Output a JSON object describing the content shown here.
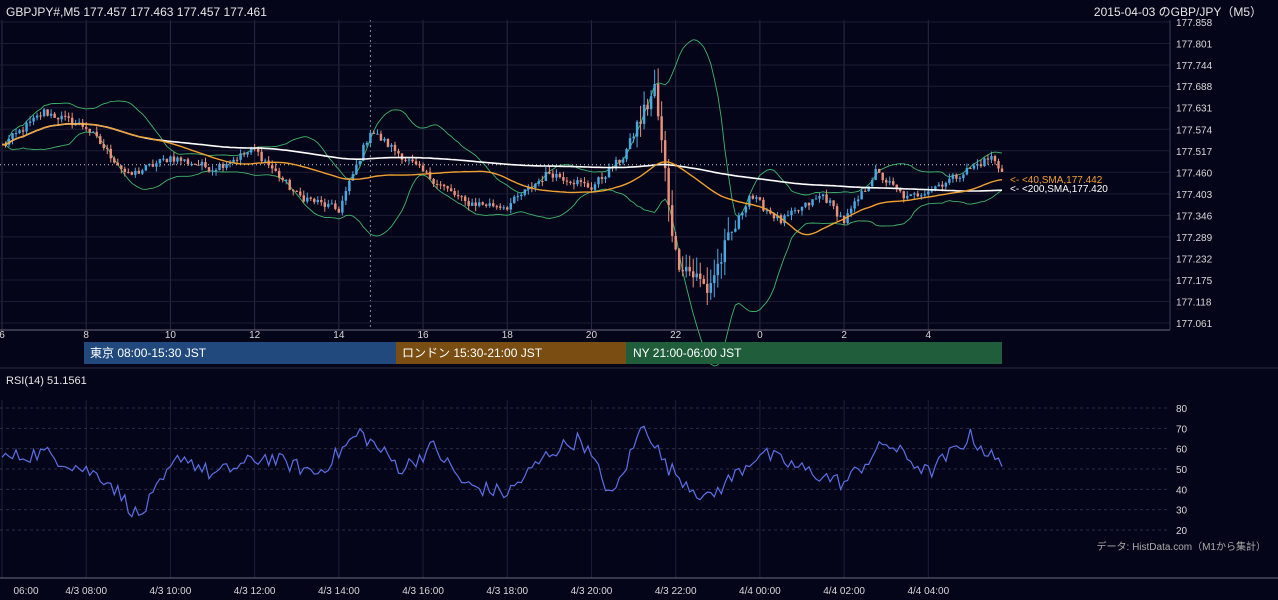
{
  "header": {
    "symbol_ohlc": "GBPJPY#,M5 177.457 177.463 177.457 177.461",
    "date_title": "2015-04-03 のGBP/JPY（M5）"
  },
  "price_axis": {
    "ticks": [
      "177.858",
      "177.801",
      "177.744",
      "177.688",
      "177.631",
      "177.574",
      "177.517",
      "177.460",
      "177.403",
      "177.346",
      "177.289",
      "177.232",
      "177.175",
      "177.118",
      "177.061"
    ]
  },
  "hour_axis": {
    "ticks": [
      "6",
      "8",
      "10",
      "12",
      "14",
      "16",
      "18",
      "20",
      "22",
      "0",
      "2",
      "4"
    ]
  },
  "sessions": [
    {
      "label": "東京 08:00-15:30 JST",
      "color": "#21497d"
    },
    {
      "label": "ロンドン 15:30-21:00 JST",
      "color": "#7a4e12"
    },
    {
      "label": "NY 21:00-06:00 JST",
      "color": "#1f5d3b"
    }
  ],
  "sma_labels": {
    "sma40": "<- <40,SMA,177.442",
    "sma200": "<- <200,SMA,177.420"
  },
  "rsi": {
    "title": "RSI(14) 51.1561",
    "ticks": [
      "80",
      "70",
      "60",
      "50",
      "40",
      "30",
      "20"
    ]
  },
  "time_axis": {
    "ticks": [
      "06:00",
      "4/3 08:00",
      "4/3 10:00",
      "4/3 12:00",
      "4/3 14:00",
      "4/3 16:00",
      "4/3 18:00",
      "4/3 20:00",
      "4/3 22:00",
      "4/4 00:00",
      "4/4 02:00",
      "4/4 04:00"
    ]
  },
  "source_note": "データ: HistData.com（M1から集計）",
  "colors": {
    "bull": "#4aa8e0",
    "bear": "#e8907a",
    "sma40": "#f0a030",
    "sma200": "#ffffff",
    "bollinger": "#3fb56a",
    "rsi_line": "#5b6fe6",
    "background": "#050519",
    "grid": "#2a2a44"
  },
  "chart_data": [
    {
      "type": "candlestick",
      "title": "GBPJPY#,M5",
      "timeframe": "M5",
      "x_range": [
        "2015-04-03 06:00",
        "2015-04-04 05:45"
      ],
      "ylim": [
        177.061,
        177.858
      ],
      "last_close": 177.461,
      "current_price_line": 177.48,
      "series": [
        {
          "name": "40,SMA",
          "last": 177.442
        },
        {
          "name": "200,SMA",
          "last": 177.42
        }
      ],
      "key_points": [
        {
          "time": "06:00",
          "price": 177.53
        },
        {
          "time": "07:00",
          "price": 177.62
        },
        {
          "time": "08:00",
          "price": 177.58
        },
        {
          "time": "09:00",
          "price": 177.45
        },
        {
          "time": "10:00",
          "price": 177.5
        },
        {
          "time": "11:00",
          "price": 177.47
        },
        {
          "time": "12:00",
          "price": 177.52
        },
        {
          "time": "13:00",
          "price": 177.4
        },
        {
          "time": "14:00",
          "price": 177.36
        },
        {
          "time": "14:45",
          "price": 177.57
        },
        {
          "time": "16:00",
          "price": 177.46
        },
        {
          "time": "17:00",
          "price": 177.38
        },
        {
          "time": "18:00",
          "price": 177.37
        },
        {
          "time": "19:00",
          "price": 177.46
        },
        {
          "time": "20:00",
          "price": 177.42
        },
        {
          "time": "20:45",
          "price": 177.5
        },
        {
          "time": "21:30",
          "price": 177.68
        },
        {
          "time": "22:00",
          "price": 177.24
        },
        {
          "time": "22:45",
          "price": 177.15
        },
        {
          "time": "23:45",
          "price": 177.4
        },
        {
          "time": "00:30",
          "price": 177.33
        },
        {
          "time": "01:30",
          "price": 177.4
        },
        {
          "time": "02:00",
          "price": 177.33
        },
        {
          "time": "02:45",
          "price": 177.46
        },
        {
          "time": "03:30",
          "price": 177.39
        },
        {
          "time": "04:30",
          "price": 177.44
        },
        {
          "time": "05:30",
          "price": 177.5
        },
        {
          "time": "05:45",
          "price": 177.461
        }
      ]
    },
    {
      "type": "line",
      "title": "RSI(14)",
      "last": 51.1561,
      "ylim": [
        20,
        80
      ],
      "key_points": [
        {
          "time": "06:00",
          "value": 55
        },
        {
          "time": "07:00",
          "value": 58
        },
        {
          "time": "08:30",
          "value": 45
        },
        {
          "time": "09:15",
          "value": 26
        },
        {
          "time": "10:15",
          "value": 57
        },
        {
          "time": "11:00",
          "value": 47
        },
        {
          "time": "12:15",
          "value": 56
        },
        {
          "time": "13:30",
          "value": 48
        },
        {
          "time": "14:30",
          "value": 68
        },
        {
          "time": "15:30",
          "value": 50
        },
        {
          "time": "16:15",
          "value": 61
        },
        {
          "time": "17:00",
          "value": 42
        },
        {
          "time": "18:00",
          "value": 38
        },
        {
          "time": "19:00",
          "value": 58
        },
        {
          "time": "19:45",
          "value": 65
        },
        {
          "time": "20:30",
          "value": 36
        },
        {
          "time": "21:15",
          "value": 73
        },
        {
          "time": "21:45",
          "value": 52
        },
        {
          "time": "22:45",
          "value": 35
        },
        {
          "time": "00:00",
          "value": 58
        },
        {
          "time": "01:00",
          "value": 50
        },
        {
          "time": "02:00",
          "value": 43
        },
        {
          "time": "03:00",
          "value": 63
        },
        {
          "time": "04:00",
          "value": 48
        },
        {
          "time": "05:00",
          "value": 66
        },
        {
          "time": "05:45",
          "value": 51.1561
        }
      ]
    }
  ]
}
